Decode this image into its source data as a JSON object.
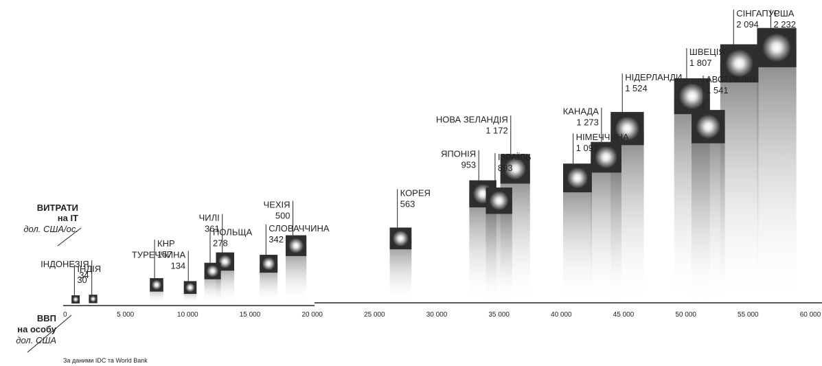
{
  "chart_data": {
    "type": "scatter",
    "y_axis_title": "ВИТРАТИ",
    "y_axis_title_2": "на IT",
    "y_axis_unit": "дол. США/ос.",
    "x_axis_title": "ВВП",
    "x_axis_title_2": "на особу",
    "x_axis_unit": "дол. США",
    "source": "За даними IDC та World Bank",
    "x_ticks": [
      "0",
      "5 000",
      "10 000",
      "15 000",
      "20 000",
      "25 000",
      "30 000",
      "35 000",
      "40 000",
      "45 000",
      "50 000",
      "55 000",
      "60 000"
    ],
    "xlim": [
      0,
      60000
    ],
    "ylim": [
      0,
      2300
    ],
    "points": [
      {
        "name": "ІНДІЯ",
        "value_label": "30",
        "x": 1000,
        "y": 30
      },
      {
        "name": "ІНДОНЕЗІЯ",
        "value_label": "34",
        "x": 2400,
        "y": 34
      },
      {
        "name": "КНР",
        "value_label": "157",
        "x": 7500,
        "y": 157
      },
      {
        "name": "ТУРЕЧЧИНА",
        "value_label": "134",
        "x": 10200,
        "y": 134
      },
      {
        "name": "ПОЛЬЩА",
        "value_label": "278",
        "x": 12000,
        "y": 278
      },
      {
        "name": "ЧИЛІ",
        "value_label": "361",
        "x": 13000,
        "y": 361
      },
      {
        "name": "СЛОВАЧЧИНА",
        "value_label": "342",
        "x": 16500,
        "y": 342
      },
      {
        "name": "ЧЕХІЯ",
        "value_label": "500",
        "x": 18700,
        "y": 500
      },
      {
        "name": "КОРЕЯ",
        "value_label": "563",
        "x": 27100,
        "y": 563
      },
      {
        "name": "ЯПОНІЯ",
        "value_label": "953",
        "x": 33700,
        "y": 953
      },
      {
        "name": "ІЗРАЇЛЬ",
        "value_label": "893",
        "x": 35000,
        "y": 893
      },
      {
        "name": "НОВА ЗЕЛАНДІЯ",
        "value_label": "1 172",
        "x": 36300,
        "y": 1172
      },
      {
        "name": "НІМЕЧЧИНА",
        "value_label": "1 092",
        "x": 41300,
        "y": 1092
      },
      {
        "name": "КАНАДА",
        "value_label": "1 273",
        "x": 43600,
        "y": 1273
      },
      {
        "name": "НІДЕРЛАНДИ",
        "value_label": "1 524",
        "x": 45300,
        "y": 1524
      },
      {
        "name": "ШВЕЦІЯ",
        "value_label": "1 807",
        "x": 50500,
        "y": 1807
      },
      {
        "name": "АВСТРАЛІЯ",
        "value_label": "1 541",
        "x": 51800,
        "y": 1541
      },
      {
        "name": "СІНГАПУР",
        "value_label": "2 094",
        "x": 54300,
        "y": 2094
      },
      {
        "name": "США",
        "value_label": "2 232",
        "x": 57300,
        "y": 2232
      }
    ]
  }
}
